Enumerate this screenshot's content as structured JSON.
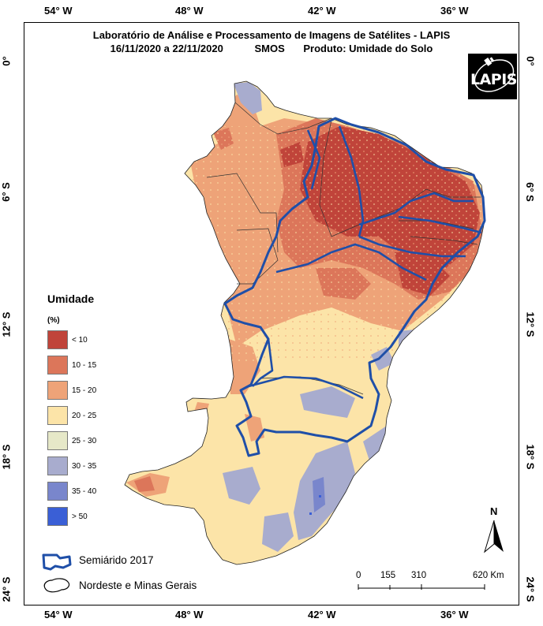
{
  "header": {
    "title_line1": "Laboratório de Análise e Processamento de Imagens de Satélites - LAPIS",
    "period": "16/11/2020  a  22/11/2020",
    "sensor": "SMOS",
    "product": "Produto: Umidade do Solo"
  },
  "logo": {
    "text": "LAPIS"
  },
  "axes": {
    "longitude_ticks": [
      "54° W",
      "48° W",
      "42° W",
      "36° W"
    ],
    "latitude_ticks": [
      "0°",
      "6° S",
      "12° S",
      "18° S",
      "24° S"
    ]
  },
  "legend": {
    "title": "Umidade",
    "unit": "(%)",
    "classes": [
      {
        "label": "< 10",
        "color": "#c0443a"
      },
      {
        "label": "10 - 15",
        "color": "#dc765a"
      },
      {
        "label": "15 - 20",
        "color": "#eea378"
      },
      {
        "label": "20 - 25",
        "color": "#fce4a8"
      },
      {
        "label": "25 - 30",
        "color": "#e6e8c8"
      },
      {
        "label": "30 - 35",
        "color": "#a8acce"
      },
      {
        "label": "35 - 40",
        "color": "#7986cc"
      },
      {
        "label": "> 50",
        "color": "#3a5fd6"
      }
    ]
  },
  "boundary_legend": {
    "semiarid": "Semiárido 2017",
    "region": "Nordeste e Minas Gerais",
    "semiarid_color": "#1f4fa8"
  },
  "scale_bar": {
    "labels": [
      "0",
      "155",
      "310",
      "620 Km"
    ]
  },
  "north_arrow": {
    "label": "N"
  }
}
